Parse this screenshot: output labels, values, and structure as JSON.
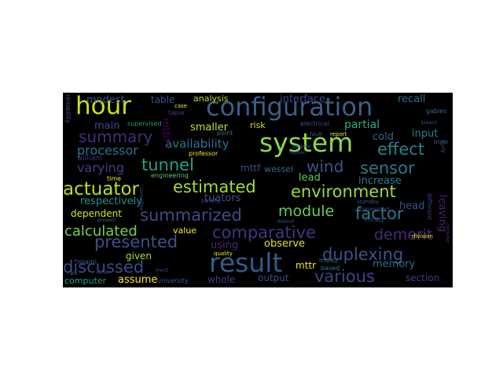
{
  "words": [
    {
      "text": "configuration",
      "color": "#3b5f8a"
    },
    {
      "text": "system",
      "color": "#8fd744"
    },
    {
      "text": "result",
      "color": "#2f5d8c"
    },
    {
      "text": "hour",
      "color": "#c9e020"
    },
    {
      "text": "summary",
      "color": "#472c7a"
    },
    {
      "text": "actuator",
      "color": "#b8de29"
    },
    {
      "text": "estimated",
      "color": "#a5db36"
    },
    {
      "text": "environment",
      "color": "#9fd938"
    },
    {
      "text": "summarized",
      "color": "#3e4a89"
    },
    {
      "text": "comparative",
      "color": "#46327e"
    },
    {
      "text": "presented",
      "color": "#3b528b"
    },
    {
      "text": "duplexing",
      "color": "#3b528b"
    },
    {
      "text": "discussed",
      "color": "#3f4889"
    },
    {
      "text": "various",
      "color": "#414487"
    },
    {
      "text": "factor",
      "color": "#2a788e"
    },
    {
      "text": "module",
      "color": "#63cb5f"
    },
    {
      "text": "calculated",
      "color": "#7ad151"
    },
    {
      "text": "tunnel",
      "color": "#20a386"
    },
    {
      "text": "sensor",
      "color": "#2a788e"
    },
    {
      "text": "wind",
      "color": "#3a538b"
    },
    {
      "text": "effect",
      "color": "#26828e"
    },
    {
      "text": "demerit",
      "color": "#472a7a"
    },
    {
      "text": "processor",
      "color": "#2c728e"
    },
    {
      "text": "availability",
      "color": "#2d708e"
    },
    {
      "text": "varying",
      "color": "#433e85"
    },
    {
      "text": "respectively",
      "color": "#21918c"
    },
    {
      "text": "main",
      "color": "#3e4989"
    },
    {
      "text": "modest",
      "color": "#3a548c"
    },
    {
      "text": "interface",
      "color": "#3f4788"
    },
    {
      "text": "recall",
      "color": "#2d708e"
    },
    {
      "text": "partial",
      "color": "#25ab82"
    },
    {
      "text": "input",
      "color": "#26828e"
    },
    {
      "text": "cold",
      "color": "#31688e"
    },
    {
      "text": "increase",
      "color": "#277f8e"
    },
    {
      "text": "head",
      "color": "#3b528b"
    },
    {
      "text": "leaving",
      "color": "#482475"
    },
    {
      "text": "lead",
      "color": "#5ec962"
    },
    {
      "text": "memory",
      "color": "#2e6e8e"
    },
    {
      "text": "section",
      "color": "#443983"
    },
    {
      "text": "output",
      "color": "#3e4a89"
    },
    {
      "text": "whole",
      "color": "#46337f"
    },
    {
      "text": "observe",
      "color": "#dde318"
    },
    {
      "text": "mttr",
      "color": "#f1e51d"
    },
    {
      "text": "using",
      "color": "#482878"
    },
    {
      "text": "assume",
      "color": "#fde725"
    },
    {
      "text": "computer",
      "color": "#22a785"
    },
    {
      "text": "given",
      "color": "#a8db34"
    },
    {
      "text": "value",
      "color": "#fde725"
    },
    {
      "text": "dependent",
      "color": "#d8e219"
    },
    {
      "text": "tuators",
      "color": "#3d4e8a"
    },
    {
      "text": "smaller",
      "color": "#c0df25"
    },
    {
      "text": "risk",
      "color": "#d0e11c"
    },
    {
      "text": "mttf",
      "color": "#3e4a89"
    },
    {
      "text": "wessel",
      "color": "#2e6f8e"
    },
    {
      "text": "mtbf",
      "color": "#440154"
    },
    {
      "text": "table",
      "color": "#3b528b"
    },
    {
      "text": "analysis",
      "color": "#bddf26"
    },
    {
      "text": "william",
      "color": "#46327e"
    },
    {
      "text": "supervised",
      "color": "#1f9e89"
    },
    {
      "text": "professor",
      "color": "#fde725"
    },
    {
      "text": "engineering",
      "color": "#5ec962"
    },
    {
      "text": "safety",
      "color": "#3e4c8a"
    },
    {
      "text": "tapia",
      "color": "#424186"
    },
    {
      "text": "reliability",
      "color": "#3b528b"
    },
    {
      "text": "time",
      "color": "#fde725"
    },
    {
      "text": "point",
      "color": "#2c728e"
    },
    {
      "text": "electrical",
      "color": "#3b528b"
    },
    {
      "text": "gables",
      "color": "#306a8e"
    },
    {
      "text": "miami",
      "color": "#31688e"
    },
    {
      "text": "university",
      "color": "#355f8d"
    },
    {
      "text": "quality",
      "color": "#fde725"
    },
    {
      "text": "based",
      "color": "#26828e"
    },
    {
      "text": "division",
      "color": "#fde725"
    },
    {
      "text": "standby",
      "color": "#3b528b"
    },
    {
      "text": "different",
      "color": "#443a83"
    },
    {
      "text": "molez",
      "color": "#2a788e"
    },
    {
      "text": "fault",
      "color": "#3b528b"
    },
    {
      "text": "report",
      "color": "#fde725"
    },
    {
      "text": "triple",
      "color": "#31688e"
    },
    {
      "text": "case",
      "color": "#fde725"
    },
    {
      "text": "view",
      "color": "#46327e"
    },
    {
      "text": "management",
      "color": "#3e4a89"
    },
    {
      "text": "virtually",
      "color": "#3b528b"
    },
    {
      "text": "present",
      "color": "#31688e"
    },
    {
      "text": "distinct",
      "color": "#3b528b"
    },
    {
      "text": "simplex",
      "color": "#306a8e"
    },
    {
      "text": "duplex",
      "color": "#3e4989"
    },
    {
      "text": "study",
      "color": "#3b528b"
    },
    {
      "text": "breach",
      "color": "#3b528b"
    },
    {
      "text": "consider",
      "color": "#46327e"
    },
    {
      "text": "merit",
      "color": "#3e4a89"
    },
    {
      "text": "rate",
      "color": "#306a8e"
    },
    {
      "text": "corrective",
      "color": "#3b528b"
    }
  ]
}
